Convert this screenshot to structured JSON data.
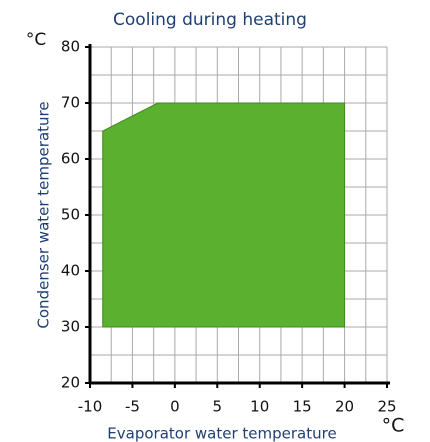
{
  "chart_data": {
    "type": "area",
    "title": "Cooling during heating",
    "xlabel": "Evaporator water temperature",
    "ylabel": "Condenser water temperature",
    "x_unit": "°C",
    "y_unit": "°C",
    "x": [
      -8.5,
      -8.5,
      -2,
      20,
      20
    ],
    "values": [
      30,
      65,
      70,
      70,
      30
    ],
    "color": "#5cb030",
    "xlim": [
      -10,
      25
    ],
    "ylim": [
      20,
      80
    ],
    "xticks": [
      -10,
      -5,
      0,
      5,
      10,
      15,
      20,
      25
    ],
    "yticks": [
      20,
      30,
      40,
      50,
      60,
      70,
      80
    ],
    "xgrid": [
      -7.5,
      -5,
      -2.5,
      0,
      2.5,
      5,
      7.5,
      10,
      12.5,
      15,
      17.5,
      20,
      22.5,
      25
    ],
    "ygrid": [
      25,
      30,
      35,
      40,
      45,
      50,
      55,
      60,
      65,
      70,
      75,
      80
    ],
    "grid": true
  }
}
